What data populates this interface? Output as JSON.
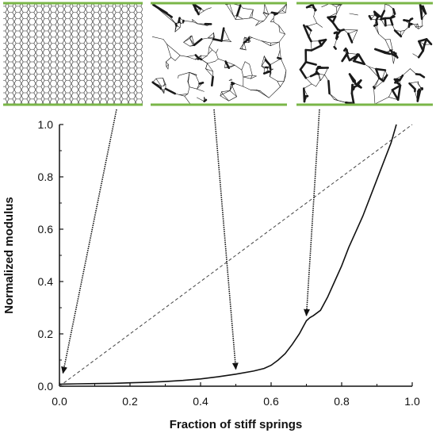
{
  "chart_data": {
    "type": "line",
    "xlabel": "Fraction of stiff springs",
    "ylabel": "Normalized modulus",
    "xlim": [
      0.0,
      1.0
    ],
    "ylim": [
      0.0,
      1.0
    ],
    "x_ticks": [
      "0.0",
      "0.2",
      "0.4",
      "0.6",
      "0.8",
      "1.0"
    ],
    "y_ticks": [
      "0.0",
      "0.2",
      "0.4",
      "0.6",
      "0.8",
      "1.0"
    ],
    "grid": false,
    "legend": "none",
    "series": [
      {
        "style": "solid",
        "x": [
          0.0,
          0.05,
          0.1,
          0.15,
          0.2,
          0.25,
          0.3,
          0.35,
          0.4,
          0.45,
          0.5,
          0.55,
          0.58,
          0.6,
          0.62,
          0.64,
          0.66,
          0.68,
          0.69,
          0.7,
          0.71,
          0.72,
          0.74,
          0.76,
          0.78,
          0.8,
          0.82,
          0.84,
          0.86,
          0.88,
          0.9,
          0.92,
          0.94,
          0.955
        ],
        "y": [
          0.008,
          0.009,
          0.01,
          0.011,
          0.013,
          0.015,
          0.018,
          0.022,
          0.028,
          0.036,
          0.046,
          0.058,
          0.068,
          0.08,
          0.1,
          0.125,
          0.16,
          0.2,
          0.225,
          0.25,
          0.262,
          0.27,
          0.29,
          0.34,
          0.4,
          0.46,
          0.53,
          0.59,
          0.65,
          0.72,
          0.79,
          0.86,
          0.93,
          1.0
        ]
      },
      {
        "style": "dashed",
        "x": [
          0.0,
          1.0
        ],
        "y": [
          0.0,
          1.0
        ]
      }
    ],
    "annotations": [
      {
        "type": "arrow",
        "target": [
          0.01,
          0.05
        ]
      },
      {
        "type": "arrow",
        "target": [
          0.5,
          0.065
        ]
      },
      {
        "type": "arrow",
        "target": [
          0.7,
          0.27
        ]
      }
    ]
  },
  "insets": [
    {
      "name": "inset-regular-hexagonal-network"
    },
    {
      "name": "inset-partially-stiff-network"
    },
    {
      "name": "inset-highly-stiff-network"
    }
  ],
  "colors": {
    "curve": "#111111",
    "plate": "#7ab648"
  }
}
